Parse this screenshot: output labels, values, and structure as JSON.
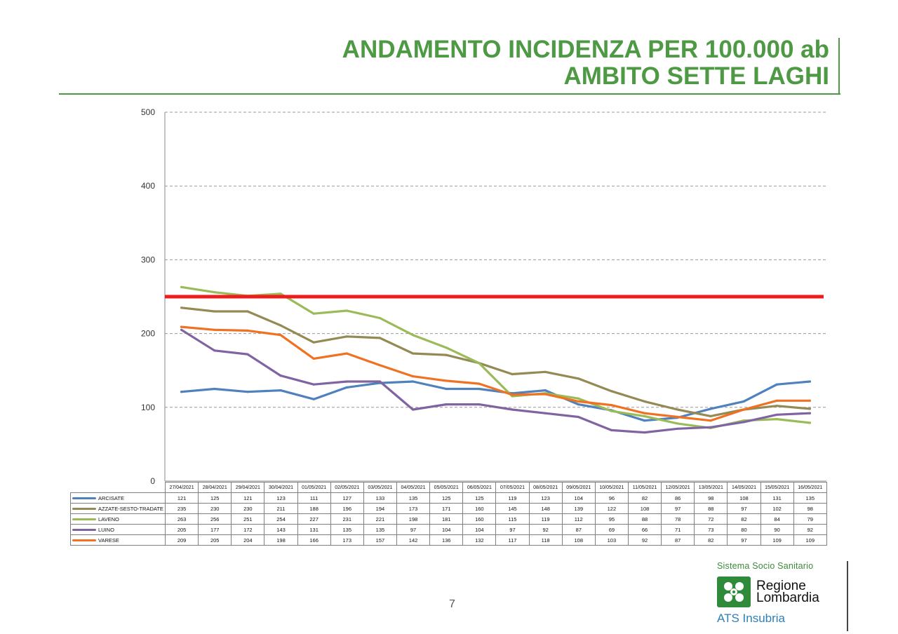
{
  "slide": {
    "title_line1": "ANDAMENTO INCIDENZA PER 100.000 ab",
    "title_line2": "AMBITO SETTE LAGHI",
    "page_number": "7"
  },
  "logo": {
    "top_text": "Sistema Socio Sanitario",
    "name_line1": "Regione",
    "name_line2": "Lombardia",
    "bottom_text": "ATS Insubria",
    "icon": "lombardy-rose-icon"
  },
  "chart_data": {
    "type": "line",
    "title": "",
    "xlabel": "",
    "ylabel": "",
    "ylim": [
      0,
      500
    ],
    "yticks": [
      0,
      100,
      200,
      300,
      400,
      500
    ],
    "grid": true,
    "legend": "data-table-below",
    "threshold": {
      "value": 250,
      "color": "#ee1c1c"
    },
    "categories": [
      "27/04/2021",
      "28/04/2021",
      "29/04/2021",
      "30/04/2021",
      "01/05/2021",
      "02/05/2021",
      "03/05/2021",
      "04/05/2021",
      "05/05/2021",
      "06/05/2021",
      "07/05/2021",
      "08/05/2021",
      "09/05/2021",
      "10/05/2021",
      "11/05/2021",
      "12/05/2021",
      "13/05/2021",
      "14/05/2021",
      "15/05/2021",
      "16/05/2021"
    ],
    "series": [
      {
        "name": "ARCISATE",
        "color": "#4f81bd",
        "values": [
          121,
          125,
          121,
          123,
          111,
          127,
          133,
          135,
          125,
          125,
          119,
          123,
          104,
          96,
          82,
          86,
          98,
          108,
          131,
          135
        ]
      },
      {
        "name": "AZZATE-SESTO-TRADATE",
        "color": "#948a54",
        "values": [
          235,
          230,
          230,
          211,
          188,
          196,
          194,
          173,
          171,
          160,
          145,
          148,
          139,
          122,
          108,
          97,
          88,
          97,
          102,
          98
        ]
      },
      {
        "name": "LAVENO",
        "color": "#9bbb59",
        "values": [
          263,
          256,
          251,
          254,
          227,
          231,
          221,
          198,
          181,
          160,
          115,
          119,
          112,
          95,
          88,
          78,
          72,
          82,
          84,
          79
        ]
      },
      {
        "name": "LUINO",
        "color": "#8064a2",
        "values": [
          205,
          177,
          172,
          143,
          131,
          135,
          135,
          97,
          104,
          104,
          97,
          92,
          87,
          69,
          66,
          71,
          73,
          80,
          90,
          92
        ]
      },
      {
        "name": "VARESE",
        "color": "#f07122",
        "values": [
          209,
          205,
          204,
          198,
          166,
          173,
          157,
          142,
          136,
          132,
          117,
          118,
          108,
          103,
          92,
          87,
          82,
          97,
          109,
          109
        ]
      }
    ]
  }
}
